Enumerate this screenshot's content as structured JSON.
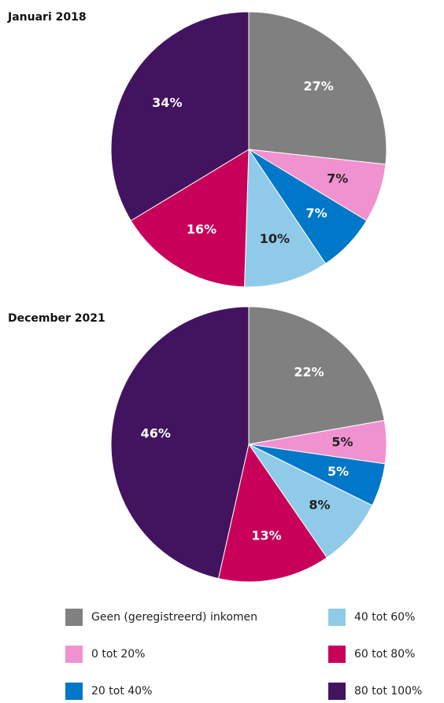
{
  "chart_data": [
    {
      "type": "pie",
      "title": "Januari 2018",
      "categories": [
        "Geen (geregistreerd) inkomen",
        "0 tot 20%",
        "20 tot 40%",
        "40 tot 60%",
        "60 tot 80%",
        "80 tot 100%"
      ],
      "colors": [
        "#808080",
        "#f092d0",
        "#0077c8",
        "#8fcbe8",
        "#c8005a",
        "#42145f"
      ],
      "values": [
        27,
        7,
        7,
        10,
        16,
        34
      ],
      "value_labels": [
        "27%",
        "7%",
        "7%",
        "10%",
        "16%",
        "34%"
      ]
    },
    {
      "type": "pie",
      "title": "December 2021",
      "categories": [
        "Geen (geregistreerd) inkomen",
        "0 tot 20%",
        "20 tot 40%",
        "40 tot 60%",
        "60 tot 80%",
        "80 tot 100%"
      ],
      "colors": [
        "#808080",
        "#f092d0",
        "#0077c8",
        "#8fcbe8",
        "#c8005a",
        "#42145f"
      ],
      "values": [
        22,
        5,
        5,
        8,
        13,
        46
      ],
      "value_labels": [
        "22%",
        "5%",
        "5%",
        "8%",
        "13%",
        "46%"
      ]
    }
  ]
}
